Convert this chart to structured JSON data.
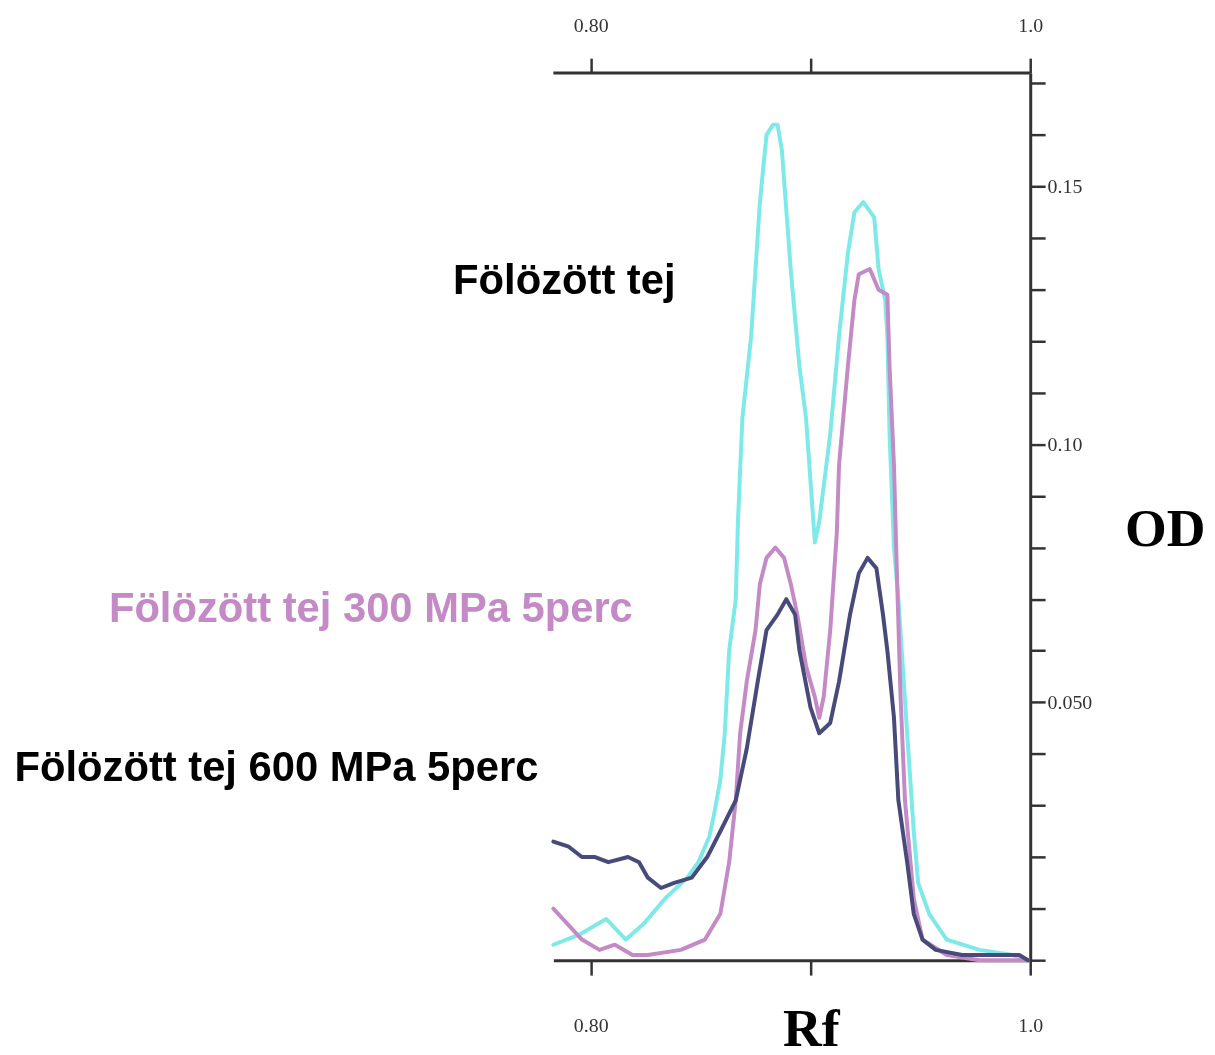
{
  "chart_data": {
    "type": "line",
    "xlabel": "Rf",
    "ylabel": "OD",
    "xlim": [
      0.783,
      1.0
    ],
    "xticks": [
      {
        "value": 0.8,
        "label": "0.80"
      },
      {
        "value": 0.9,
        "label": null
      },
      {
        "value": 1.0,
        "label": "1.0"
      }
    ],
    "x2lim": [
      0.783,
      1.0
    ],
    "x2ticks": [
      {
        "value": 0.8,
        "label": "0.80"
      },
      {
        "value": 0.9,
        "label": null
      },
      {
        "value": 1.0,
        "label": "1.0"
      }
    ],
    "ylim": [
      0,
      0.172
    ],
    "yticks": [
      {
        "value": 0,
        "label": null
      },
      {
        "value": 0.01,
        "label": null
      },
      {
        "value": 0.02,
        "label": null
      },
      {
        "value": 0.03,
        "label": null
      },
      {
        "value": 0.04,
        "label": null
      },
      {
        "value": 0.05,
        "label": "0.050"
      },
      {
        "value": 0.06,
        "label": null
      },
      {
        "value": 0.07,
        "label": null
      },
      {
        "value": 0.08,
        "label": null
      },
      {
        "value": 0.09,
        "label": null
      },
      {
        "value": 0.1,
        "label": "0.10"
      },
      {
        "value": 0.11,
        "label": null
      },
      {
        "value": 0.12,
        "label": null
      },
      {
        "value": 0.13,
        "label": null
      },
      {
        "value": 0.14,
        "label": null
      },
      0.15,
      {
        "value": 0.16,
        "label": null
      },
      {
        "value": 0.17,
        "label": null
      }
    ],
    "series": [
      {
        "name": "Fölözött tej",
        "color": "#7ee9e9",
        "x": [
          0.783,
          0.795,
          0.807,
          0.816,
          0.824,
          0.834,
          0.844,
          0.849,
          0.854,
          0.856,
          0.859,
          0.861,
          0.863,
          0.866,
          0.867,
          0.869,
          0.873,
          0.877,
          0.88,
          0.883,
          0.885,
          0.887,
          0.891,
          0.895,
          0.898,
          0.902,
          0.904,
          0.909,
          0.913,
          0.917,
          0.92,
          0.924,
          0.929,
          0.931,
          0.934,
          0.935,
          0.936,
          0.938,
          0.94,
          0.944,
          0.947,
          0.949,
          0.954,
          0.962,
          0.977,
          0.992,
          0.999
        ],
        "values": [
          0.003,
          0.005,
          0.008,
          0.004,
          0.007,
          0.012,
          0.016,
          0.019,
          0.024,
          0.028,
          0.035,
          0.044,
          0.06,
          0.07,
          0.085,
          0.105,
          0.121,
          0.147,
          0.16,
          0.162,
          0.162,
          0.157,
          0.134,
          0.115,
          0.105,
          0.081,
          0.085,
          0.102,
          0.121,
          0.137,
          0.145,
          0.147,
          0.144,
          0.134,
          0.128,
          0.121,
          0.102,
          0.08,
          0.07,
          0.044,
          0.025,
          0.015,
          0.009,
          0.004,
          0.002,
          0.001,
          0.0
        ]
      },
      {
        "name": "Fölözött tej 300 MPa 5perc",
        "color": "#c48ac6",
        "x": [
          0.783,
          0.796,
          0.804,
          0.811,
          0.819,
          0.826,
          0.841,
          0.852,
          0.859,
          0.863,
          0.866,
          0.868,
          0.871,
          0.875,
          0.877,
          0.88,
          0.884,
          0.888,
          0.891,
          0.894,
          0.898,
          0.902,
          0.904,
          0.906,
          0.909,
          0.912,
          0.913,
          0.917,
          0.92,
          0.922,
          0.927,
          0.931,
          0.935,
          0.936,
          0.938,
          0.939,
          0.941,
          0.943,
          0.947,
          0.951,
          0.962,
          0.977,
          0.999
        ],
        "values": [
          0.01,
          0.004,
          0.002,
          0.003,
          0.001,
          0.001,
          0.002,
          0.004,
          0.009,
          0.019,
          0.031,
          0.044,
          0.054,
          0.064,
          0.073,
          0.078,
          0.08,
          0.078,
          0.073,
          0.067,
          0.057,
          0.051,
          0.047,
          0.051,
          0.064,
          0.083,
          0.096,
          0.115,
          0.128,
          0.133,
          0.134,
          0.13,
          0.129,
          0.115,
          0.096,
          0.08,
          0.051,
          0.031,
          0.012,
          0.004,
          0.001,
          0.0,
          0.0
        ]
      },
      {
        "name": "Fölözött tej 600 MPa 5perc",
        "color": "#474a7a",
        "x": [
          0.783,
          0.79,
          0.796,
          0.802,
          0.808,
          0.817,
          0.822,
          0.826,
          0.832,
          0.838,
          0.846,
          0.853,
          0.859,
          0.866,
          0.871,
          0.876,
          0.88,
          0.885,
          0.889,
          0.893,
          0.895,
          0.9,
          0.904,
          0.909,
          0.913,
          0.918,
          0.922,
          0.926,
          0.93,
          0.933,
          0.935,
          0.938,
          0.94,
          0.944,
          0.947,
          0.951,
          0.957,
          0.969,
          0.984,
          0.995,
          0.999
        ],
        "values": [
          0.023,
          0.022,
          0.02,
          0.02,
          0.019,
          0.02,
          0.019,
          0.016,
          0.014,
          0.015,
          0.016,
          0.02,
          0.025,
          0.031,
          0.041,
          0.054,
          0.064,
          0.067,
          0.07,
          0.067,
          0.06,
          0.049,
          0.044,
          0.046,
          0.054,
          0.067,
          0.075,
          0.078,
          0.076,
          0.067,
          0.06,
          0.047,
          0.031,
          0.019,
          0.009,
          0.004,
          0.002,
          0.001,
          0.001,
          0.001,
          0.0
        ]
      }
    ]
  }
}
